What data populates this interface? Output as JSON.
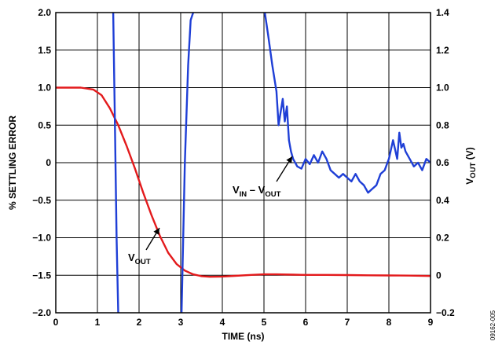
{
  "chart_data": {
    "type": "line",
    "xlabel": "TIME (ns)",
    "ylabel_left": "% SETTLING ERROR",
    "ylabel_right_main": "V",
    "ylabel_right_sub": "OUT",
    "ylabel_right_unit": " (V)",
    "xlim": [
      0,
      9
    ],
    "ylim_left": [
      -2.0,
      2.0
    ],
    "ylim_right": [
      -0.2,
      1.4
    ],
    "x_ticks": [
      "0",
      "1",
      "2",
      "3",
      "4",
      "5",
      "6",
      "7",
      "8",
      "9"
    ],
    "y_left_ticks": [
      "2.0",
      "1.5",
      "1.0",
      "0.5",
      "0",
      "−0.5",
      "−1.0",
      "−1.5",
      "−2.0"
    ],
    "y_right_ticks": [
      "1.4",
      "1.2",
      "1.0",
      "0.8",
      "0.6",
      "0.4",
      "0.2",
      "0",
      "−0.2"
    ],
    "grid": true,
    "figure_id": "09162-005",
    "annotations": {
      "vout": {
        "main": "V",
        "sub": "OUT"
      },
      "diff": {
        "v1": "V",
        "s1": "IN",
        "dash": " – ",
        "v2": "V",
        "s2": "OUT"
      }
    },
    "series": [
      {
        "color": "#e31a1c",
        "axis": "right",
        "x": [
          0,
          0.3,
          0.6,
          0.9,
          1.1,
          1.3,
          1.5,
          1.7,
          1.9,
          2.1,
          2.3,
          2.5,
          2.7,
          2.9,
          3.1,
          3.3,
          3.5,
          3.7,
          4.0,
          4.3,
          4.7,
          5.0,
          5.3,
          5.7,
          6.0,
          6.5,
          7.0,
          7.5,
          8.0,
          8.5,
          9.0
        ],
        "y": [
          1.0,
          1.0,
          1.0,
          0.99,
          0.96,
          0.89,
          0.8,
          0.69,
          0.57,
          0.44,
          0.32,
          0.21,
          0.12,
          0.06,
          0.025,
          0.005,
          -0.005,
          -0.008,
          -0.007,
          -0.003,
          0.002,
          0.005,
          0.005,
          0.003,
          0.002,
          0.002,
          0.001,
          0.0,
          -0.001,
          -0.002,
          -0.004
        ]
      },
      {
        "color": "#1f3fd6",
        "axis": "left",
        "x": [
          1.38,
          1.42,
          1.46,
          1.5,
          3.02,
          3.06,
          3.1,
          3.18,
          3.24,
          3.3,
          5.02,
          5.1,
          5.2,
          5.3,
          5.35,
          5.45,
          5.5,
          5.55,
          5.6,
          5.65,
          5.7,
          5.8,
          5.9,
          6.0,
          6.1,
          6.2,
          6.3,
          6.4,
          6.5,
          6.6,
          6.7,
          6.8,
          6.9,
          7.0,
          7.1,
          7.2,
          7.3,
          7.4,
          7.5,
          7.6,
          7.7,
          7.8,
          7.9,
          8.0,
          8.1,
          8.2,
          8.25,
          8.3,
          8.35,
          8.4,
          8.5,
          8.6,
          8.7,
          8.8,
          8.9,
          9.0
        ],
        "y": [
          2.0,
          0.5,
          -1.0,
          -2.0,
          -2.0,
          -1.0,
          0.0,
          1.3,
          1.9,
          2.0,
          2.0,
          1.7,
          1.3,
          0.95,
          0.5,
          0.85,
          0.55,
          0.75,
          0.3,
          0.15,
          0.05,
          -0.05,
          -0.08,
          0.05,
          -0.02,
          0.1,
          0.0,
          0.15,
          0.05,
          -0.1,
          -0.15,
          -0.2,
          -0.15,
          -0.2,
          -0.25,
          -0.15,
          -0.25,
          -0.3,
          -0.4,
          -0.35,
          -0.3,
          -0.15,
          -0.1,
          0.05,
          0.3,
          0.05,
          0.4,
          0.2,
          0.25,
          0.15,
          0.05,
          -0.05,
          0.0,
          -0.1,
          0.05,
          0.0
        ]
      }
    ]
  }
}
